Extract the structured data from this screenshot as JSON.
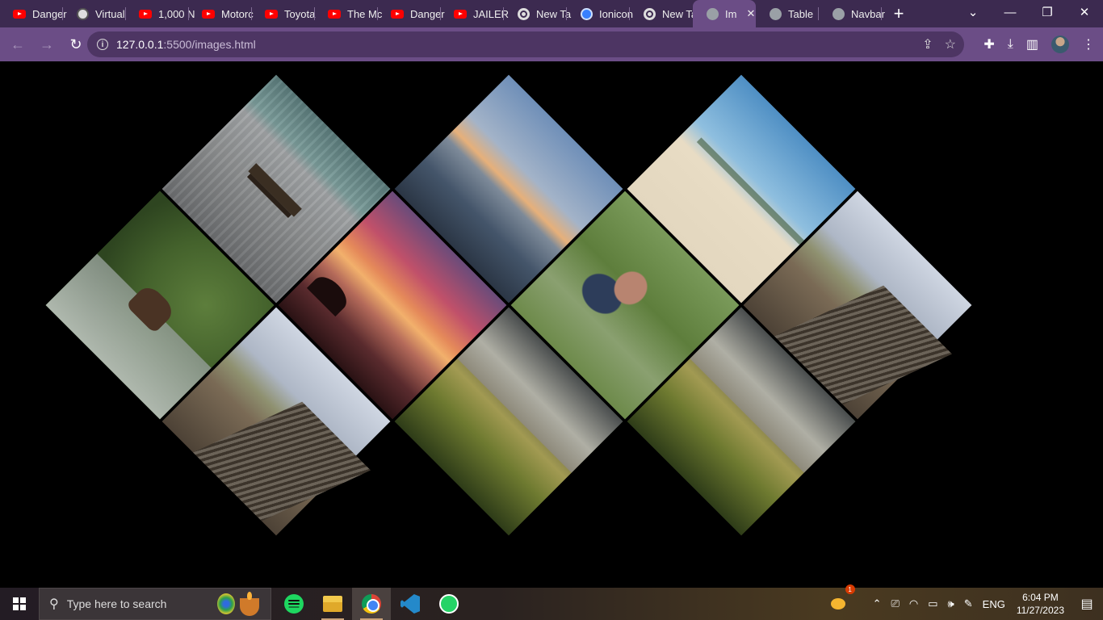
{
  "browser": {
    "tabs": [
      {
        "label": "Danger",
        "favicon": "youtube-icon"
      },
      {
        "label": "Virtual",
        "favicon": "mask-icon"
      },
      {
        "label": "1,000 N",
        "favicon": "youtube-icon"
      },
      {
        "label": "Motorc",
        "favicon": "youtube-icon"
      },
      {
        "label": "Toyota",
        "favicon": "youtube-icon"
      },
      {
        "label": "The Mc",
        "favicon": "youtube-icon"
      },
      {
        "label": "Danger",
        "favicon": "youtube-icon"
      },
      {
        "label": "JAILER",
        "favicon": "youtube-icon"
      },
      {
        "label": "New Ta",
        "favicon": "chrome-icon"
      },
      {
        "label": "Ionicon",
        "favicon": "ionic-icon"
      },
      {
        "label": "New Ta",
        "favicon": "chrome-icon"
      },
      {
        "label": "Im",
        "favicon": "globe-icon",
        "active": true
      },
      {
        "label": "Table",
        "favicon": "globe-icon"
      },
      {
        "label": "Navbar",
        "favicon": "globe-icon"
      }
    ],
    "new_tab": "+",
    "address": {
      "host": "127.0.0.1",
      "path": ":5500/images.html"
    }
  },
  "colors": {
    "frame": "#3c2a50",
    "toolbar": "#6b4d86",
    "page_background": "#000000"
  },
  "gallery": {
    "images": [
      {
        "name": "pier-bench"
      },
      {
        "name": "elk-river"
      },
      {
        "name": "boardwalk"
      },
      {
        "name": "sunset-sky"
      },
      {
        "name": "dusk-sea"
      },
      {
        "name": "dune-storm"
      },
      {
        "name": "couple-grass"
      },
      {
        "name": "beach-coast"
      },
      {
        "name": "boardwalk"
      },
      {
        "name": "dune-storm"
      }
    ]
  },
  "taskbar": {
    "search_placeholder": "Type here to search",
    "apps": [
      "spotify-icon",
      "file-explorer-icon",
      "chrome-icon",
      "vscode-icon",
      "whatsapp-icon"
    ],
    "weather_badge": "1",
    "language": "ENG",
    "time": "6:04 PM",
    "date": "11/27/2023"
  }
}
